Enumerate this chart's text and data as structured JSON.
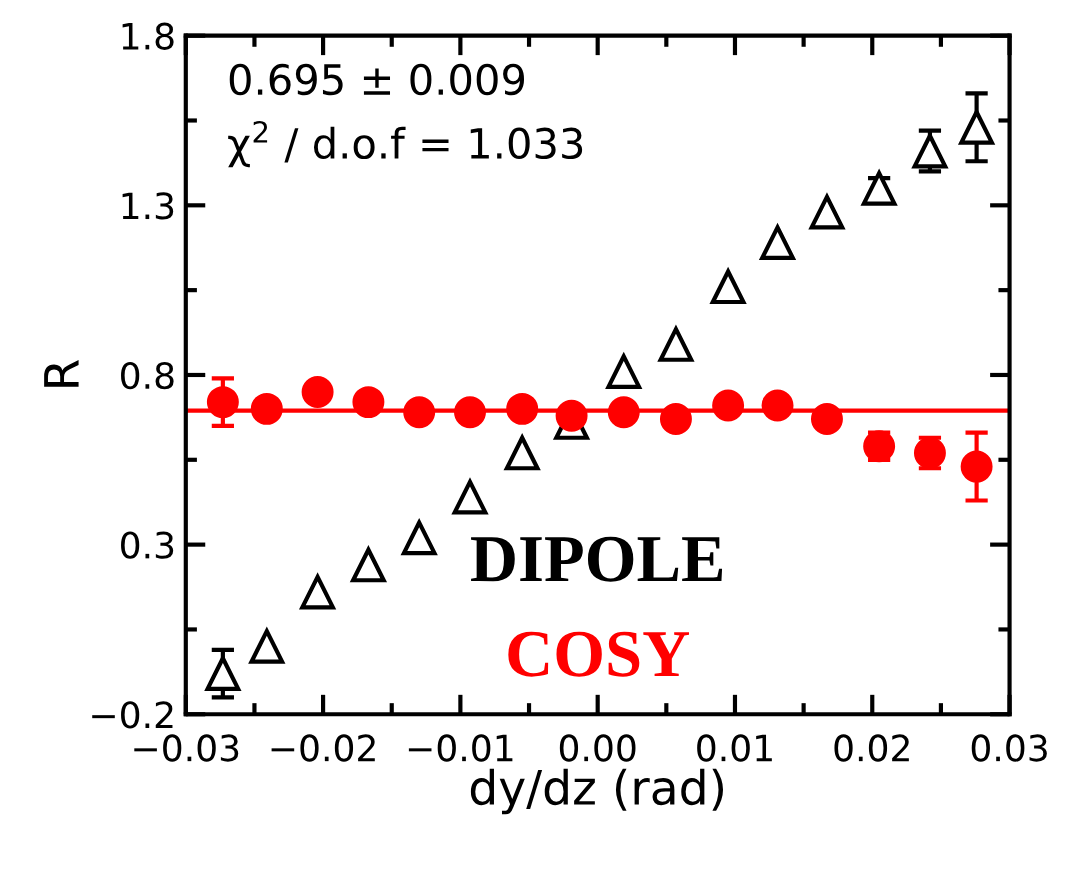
{
  "chart_data": {
    "type": "scatter",
    "xlabel": "dy/dz (rad)",
    "ylabel": "R",
    "x": [
      -0.0273,
      -0.0241,
      -0.0204,
      -0.0167,
      -0.013,
      -0.0093,
      -0.0055,
      -0.0019,
      0.0019,
      0.0057,
      0.0095,
      0.0131,
      0.0167,
      0.0205,
      0.0242,
      0.0276
    ],
    "series": [
      {
        "name": "DIPOLE",
        "color": "#000000",
        "marker": "triangle",
        "values": [
          -0.08,
          0.0,
          0.16,
          0.24,
          0.32,
          0.44,
          0.57,
          0.66,
          0.81,
          0.89,
          1.06,
          1.19,
          1.28,
          1.35,
          1.46,
          1.53
        ],
        "errors": [
          0.07,
          null,
          null,
          null,
          null,
          null,
          null,
          null,
          null,
          null,
          null,
          null,
          null,
          0.03,
          0.06,
          0.1
        ]
      },
      {
        "name": "COSY",
        "color": "#ff0000",
        "marker": "circle",
        "values": [
          0.72,
          0.7,
          0.75,
          0.72,
          0.69,
          0.69,
          0.7,
          0.68,
          0.69,
          0.67,
          0.71,
          0.71,
          0.67,
          0.59,
          0.57,
          0.53
        ],
        "errors": [
          0.07,
          null,
          null,
          null,
          null,
          null,
          null,
          null,
          null,
          null,
          null,
          null,
          null,
          0.04,
          0.045,
          0.1
        ]
      }
    ],
    "ref_lines": [
      {
        "axis": "y",
        "value": 0.695,
        "label": null,
        "color": "#ff0000"
      }
    ],
    "annotations": [
      "0.695 ± 0.009",
      "χ$^{2}$ / d.o.f = 1.033"
    ],
    "xlim": [
      -0.03,
      0.03
    ],
    "xticks": [
      {
        "value": -0.03,
        "label": "−0.03"
      },
      {
        "value": -0.02,
        "label": "−0.02"
      },
      {
        "value": -0.01,
        "label": "−0.01"
      },
      {
        "value": 0.0,
        "label": "0.00"
      },
      0.01,
      0.02,
      0.03
    ],
    "ylim": [
      -0.2,
      1.8
    ],
    "yticks": [
      {
        "value": -0.2,
        "label": "−0.2"
      },
      0.3,
      0.8,
      1.3,
      1.8
    ],
    "grid": false,
    "legend": false
  }
}
